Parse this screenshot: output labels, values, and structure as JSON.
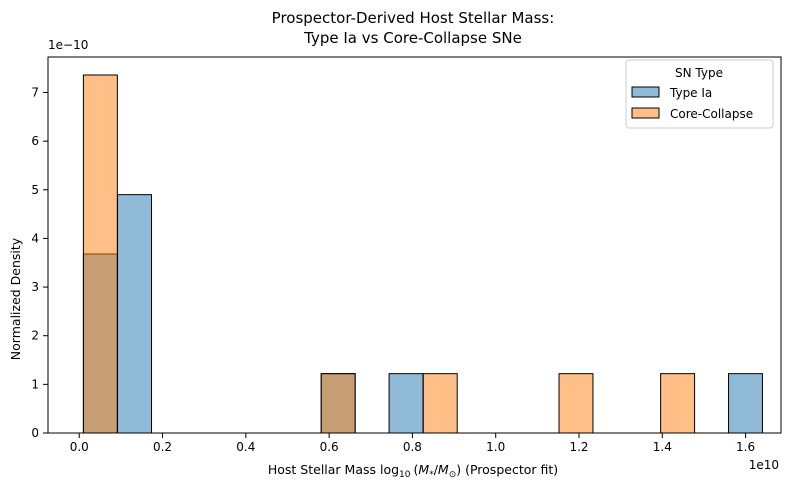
{
  "chart_data": {
    "type": "bar",
    "chart_kind": "overlaid histogram",
    "title_lines": [
      "Prospector-Derived Host Stellar Mass:",
      "Type Ia vs Core-Collapse SNe"
    ],
    "xlabel": {
      "prefix": "Host Stellar Mass log",
      "sub": "10",
      "mid": "(",
      "m1": "M",
      "m1sub": "*",
      "slash": "/",
      "m2": "M",
      "m2sub": "⊙",
      "suffix": ") (Prospector fit)"
    },
    "ylabel": "Normalized Density",
    "x_offset_text": "1e10",
    "y_offset_text": "1e−10",
    "x_scale": 10000000000.0,
    "y_scale": 1e-10,
    "xlim": [
      -0.075,
      1.685
    ],
    "ylim": [
      0,
      7.73
    ],
    "x_ticks": [
      0.0,
      0.2,
      0.4,
      0.6,
      0.8,
      1.0,
      1.2,
      1.4,
      1.6
    ],
    "x_tick_labels": [
      "0.0",
      "0.2",
      "0.4",
      "0.6",
      "0.8",
      "1.0",
      "1.2",
      "1.4",
      "1.6"
    ],
    "y_ticks": [
      0,
      1,
      2,
      3,
      4,
      5,
      6,
      7
    ],
    "y_tick_labels": [
      "0",
      "1",
      "2",
      "3",
      "4",
      "5",
      "6",
      "7"
    ],
    "bin_width": 0.0815,
    "legend": {
      "title": "SN Type",
      "placement": "top-right"
    },
    "series": [
      {
        "name": "Type Ia",
        "color": "#1f77b4",
        "bins": [
          {
            "x0": 0.01,
            "value": 3.68
          },
          {
            "x0": 0.092,
            "value": 4.9
          },
          {
            "x0": 0.581,
            "value": 1.22
          },
          {
            "x0": 0.744,
            "value": 1.22
          },
          {
            "x0": 1.559,
            "value": 1.22
          }
        ]
      },
      {
        "name": "Core-Collapse",
        "color": "#ff7f0e",
        "bins": [
          {
            "x0": 0.01,
            "value": 7.36
          },
          {
            "x0": 0.581,
            "value": 1.22
          },
          {
            "x0": 0.826,
            "value": 1.22
          },
          {
            "x0": 1.152,
            "value": 1.22
          },
          {
            "x0": 1.396,
            "value": 1.22
          }
        ]
      }
    ]
  }
}
